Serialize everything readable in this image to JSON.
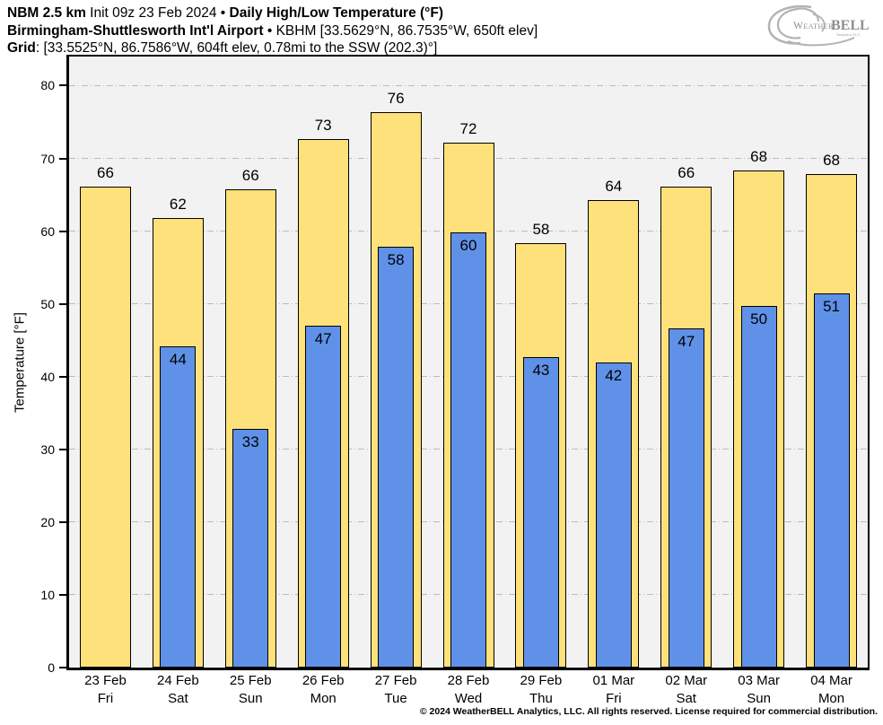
{
  "header": {
    "line1_bold_a": "NBM 2.5 km",
    "line1_plain": " Init 09z 23 Feb 2024 • ",
    "line1_bold_b": "Daily High/Low Temperature (°F)",
    "line2_bold": "Birmingham-Shuttlesworth Int'l Airport",
    "line2_plain": " • KBHM [33.5629°N, 86.7535°W, 650ft elev]",
    "line3_bold": "Grid",
    "line3_plain": ": [33.5525°N, 86.7586°W, 604ft elev, 0.78mi to the SSW (202.3)°]"
  },
  "logo": {
    "name_a": "Weather",
    "name_b": "BELL",
    "subtitle": "Analytics LLC"
  },
  "chart_data": {
    "type": "bar",
    "title": "Daily High/Low Temperature (°F)",
    "ylabel": "Temperature [°F]",
    "ylim": [
      0,
      84
    ],
    "yticks": [
      0,
      10,
      20,
      30,
      40,
      50,
      60,
      70,
      80
    ],
    "grid": "horizontal dash-dot",
    "legend": "none",
    "categories": [
      "23 Feb",
      "24 Feb",
      "25 Feb",
      "26 Feb",
      "27 Feb",
      "28 Feb",
      "29 Feb",
      "01 Mar",
      "02 Mar",
      "03 Mar",
      "04 Mar"
    ],
    "weekdays": [
      "Fri",
      "Sat",
      "Sun",
      "Mon",
      "Tue",
      "Wed",
      "Thu",
      "Fri",
      "Sat",
      "Sun",
      "Mon"
    ],
    "series": [
      {
        "name": "High",
        "color": "#FEE17B",
        "border": "#000000",
        "labels": [
          66,
          62,
          66,
          73,
          76,
          72,
          58,
          64,
          66,
          68,
          68
        ],
        "values": [
          66.1,
          61.8,
          65.8,
          72.6,
          76.3,
          72.2,
          58.3,
          64.3,
          66.1,
          68.3,
          67.8
        ]
      },
      {
        "name": "Low",
        "color": "#6091E8",
        "border": "#000000",
        "labels": [
          null,
          44,
          33,
          47,
          58,
          60,
          43,
          42,
          47,
          50,
          51
        ],
        "values": [
          null,
          44.2,
          32.8,
          47.0,
          57.9,
          59.8,
          42.7,
          42.0,
          46.6,
          49.7,
          51.4
        ]
      }
    ]
  },
  "footer": {
    "copyright": "© 2024 WeatherBELL Analytics, LLC. All rights reserved. License required for commercial distribution."
  },
  "colors": {
    "plot_bg": "#F2F2F2",
    "grid": "#BBBBBB",
    "axis": "#000000",
    "page_bg": "#FFFFFF",
    "high_bar": "#FEE17B",
    "low_bar": "#6091E8"
  }
}
